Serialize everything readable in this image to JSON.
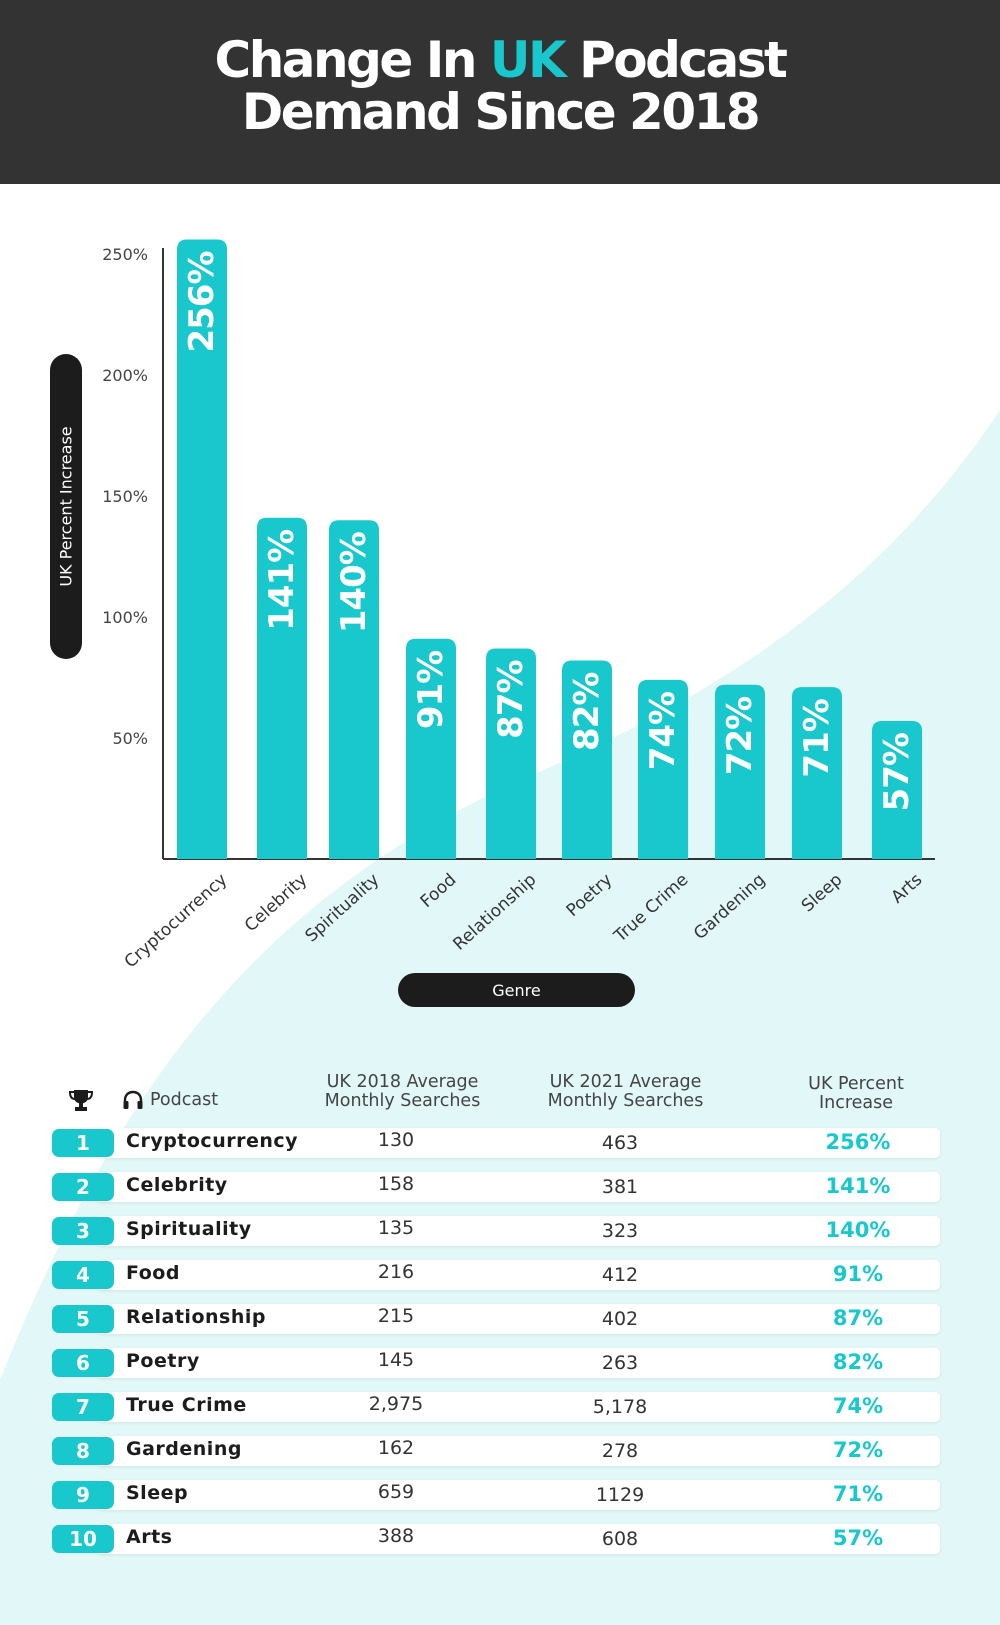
{
  "title": {
    "prefix": "Change In ",
    "highlight": "UK",
    "suffix": " Podcast",
    "line2": "Demand Since 2018"
  },
  "colors": {
    "accent": "#18c8cd",
    "header_bg": "#333333",
    "pill_bg": "#1c1c1c",
    "wave": "#e2f7f7"
  },
  "chart_data": {
    "type": "bar",
    "categories": [
      "Cryptocurrency",
      "Celebrity",
      "Spirituality",
      "Food",
      "Relationship",
      "Poetry",
      "True Crime",
      "Gardening",
      "Sleep",
      "Arts"
    ],
    "values": [
      256,
      141,
      140,
      91,
      87,
      82,
      74,
      72,
      71,
      57
    ],
    "data_labels": [
      "256%",
      "141%",
      "140%",
      "91%",
      "87%",
      "82%",
      "74%",
      "72%",
      "71%",
      "57%"
    ],
    "yticks": [
      {
        "value": 50,
        "label": "50%"
      },
      {
        "value": 100,
        "label": "100%"
      },
      {
        "value": 150,
        "label": "150%"
      },
      {
        "value": 200,
        "label": "200%"
      },
      {
        "value": 250,
        "label": "250%"
      }
    ],
    "ylim": [
      0,
      260
    ],
    "ylabel": "UK Percent Increase",
    "xlabel": "Genre",
    "grid": false
  },
  "table": {
    "headers": {
      "trophy_icon": "trophy-icon",
      "headphones_icon": "headphones-icon",
      "podcast": "Podcast",
      "searches_2018_line1": "UK 2018 Average",
      "searches_2018_line2": "Monthly Searches",
      "searches_2021_line1": "UK 2021 Average",
      "searches_2021_line2": "Monthly Searches",
      "percent_line1": "UK Percent",
      "percent_line2": "Increase"
    },
    "rows": [
      {
        "rank": "1",
        "name": "Cryptocurrency",
        "s2018": "130",
        "s2021": "463",
        "pct": "256%"
      },
      {
        "rank": "2",
        "name": "Celebrity",
        "s2018": "158",
        "s2021": "381",
        "pct": "141%"
      },
      {
        "rank": "3",
        "name": "Spirituality",
        "s2018": "135",
        "s2021": "323",
        "pct": "140%"
      },
      {
        "rank": "4",
        "name": "Food",
        "s2018": "216",
        "s2021": "412",
        "pct": "91%"
      },
      {
        "rank": "5",
        "name": "Relationship",
        "s2018": "215",
        "s2021": "402",
        "pct": "87%"
      },
      {
        "rank": "6",
        "name": "Poetry",
        "s2018": "145",
        "s2021": "263",
        "pct": "82%"
      },
      {
        "rank": "7",
        "name": "True Crime",
        "s2018": "2,975",
        "s2021": "5,178",
        "pct": "74%"
      },
      {
        "rank": "8",
        "name": "Gardening",
        "s2018": "162",
        "s2021": "278",
        "pct": "72%"
      },
      {
        "rank": "9",
        "name": "Sleep",
        "s2018": "659",
        "s2021": "1129",
        "pct": "71%"
      },
      {
        "rank": "10",
        "name": "Arts",
        "s2018": "388",
        "s2021": "608",
        "pct": "57%"
      }
    ]
  }
}
